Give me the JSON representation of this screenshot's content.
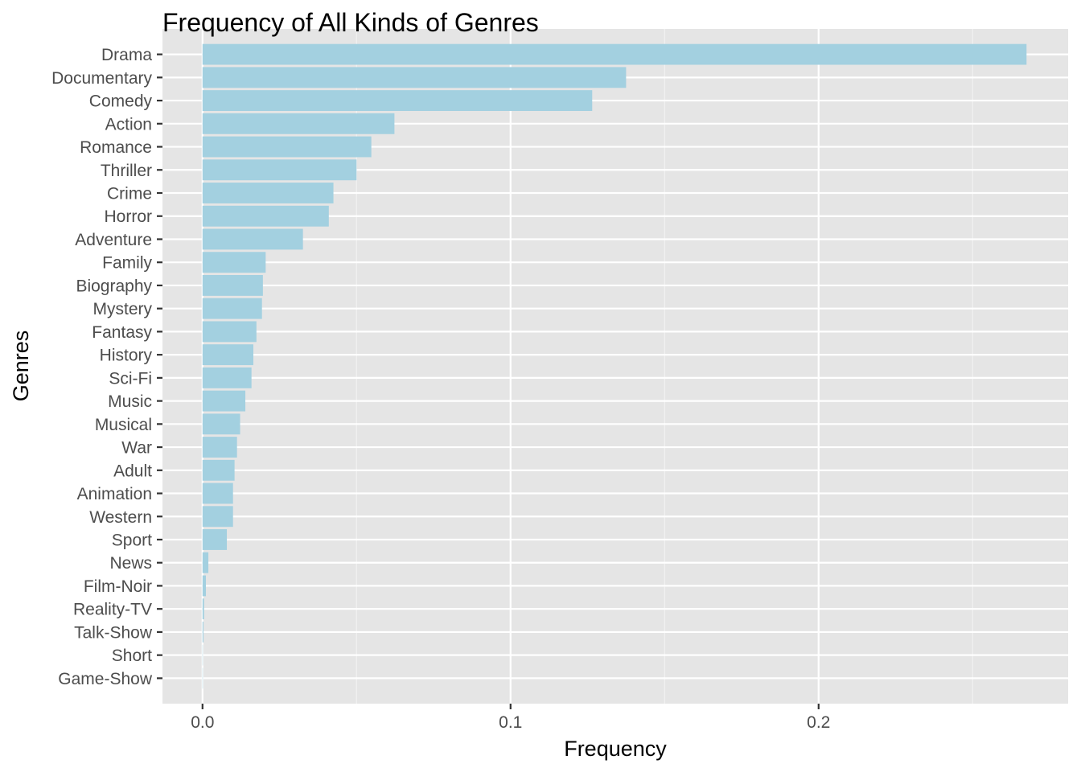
{
  "chart_data": {
    "type": "bar",
    "orientation": "horizontal",
    "title": "Frequency of All Kinds of Genres",
    "xlabel": "Frequency",
    "ylabel": "Genres",
    "xlim": [
      -0.013,
      0.281
    ],
    "xticks": [
      0.0,
      0.1,
      0.2
    ],
    "xtick_labels": [
      "0.0",
      "0.1",
      "0.2"
    ],
    "categories": [
      "Drama",
      "Documentary",
      "Comedy",
      "Action",
      "Romance",
      "Thriller",
      "Crime",
      "Horror",
      "Adventure",
      "Family",
      "Biography",
      "Mystery",
      "Fantasy",
      "History",
      "Sci-Fi",
      "Music",
      "Musical",
      "War",
      "Adult",
      "Animation",
      "Western",
      "Sport",
      "News",
      "Film-Noir",
      "Reality-TV",
      "Talk-Show",
      "Short",
      "Game-Show"
    ],
    "values": [
      0.2675,
      0.1375,
      0.1265,
      0.0623,
      0.0548,
      0.05,
      0.0425,
      0.041,
      0.0326,
      0.0205,
      0.0196,
      0.0193,
      0.0175,
      0.0165,
      0.0159,
      0.0139,
      0.0122,
      0.0112,
      0.0104,
      0.0099,
      0.0099,
      0.0079,
      0.0019,
      0.0011,
      0.0005,
      0.0003,
      0.0001,
      0.0001
    ],
    "grid": true,
    "legend": "none",
    "colors": {
      "bar": "#a3d0e0",
      "panel_background": "#e5e5e5",
      "grid_major": "#ffffff",
      "tick_text": "#4d4d4d"
    }
  }
}
